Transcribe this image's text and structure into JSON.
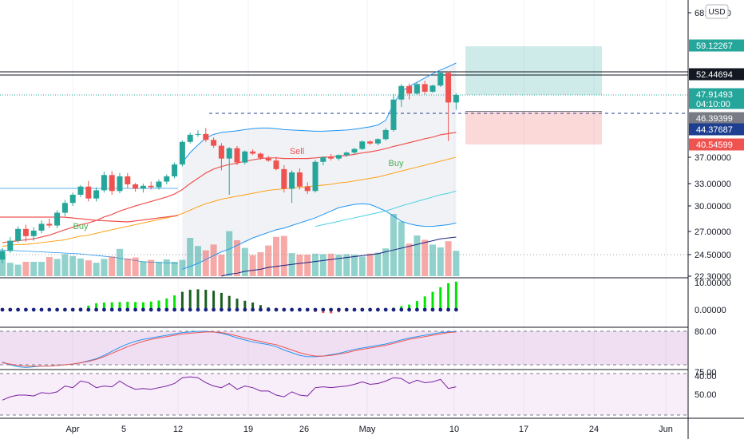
{
  "chart_data": {
    "type": "candlestick",
    "currency_button": "USD",
    "price_ticks": [
      "68.00000",
      "37.00000",
      "33.00000",
      "30.00000",
      "27.00000",
      "24.50000",
      "22.30000"
    ],
    "price_labels": [
      {
        "value": "59.12267",
        "color": "#26a69a"
      },
      {
        "value": "52.44694",
        "color": "#131722"
      },
      {
        "value": "47.91493",
        "color": "#26a69a",
        "sub": "04:10:00"
      },
      {
        "value": "46.39399",
        "color": "#787b86"
      },
      {
        "value": "44.37687",
        "color": "#1e3f8f"
      },
      {
        "value": "40.54599",
        "color": "#ef5350"
      }
    ],
    "x_ticks": [
      "Apr",
      "5",
      "12",
      "19",
      "26",
      "May",
      "10",
      "17",
      "24",
      "Jun"
    ],
    "candles": [
      [
        24.0,
        25.2,
        23.6,
        24.9
      ],
      [
        24.9,
        26.4,
        24.7,
        26.0
      ],
      [
        26.0,
        27.6,
        25.8,
        27.3
      ],
      [
        27.3,
        27.8,
        25.9,
        26.5
      ],
      [
        26.5,
        27.5,
        26.0,
        27.1
      ],
      [
        27.1,
        28.3,
        26.8,
        27.9
      ],
      [
        27.9,
        28.5,
        27.4,
        27.7
      ],
      [
        27.7,
        29.5,
        27.4,
        29.2
      ],
      [
        29.2,
        30.8,
        28.8,
        30.4
      ],
      [
        30.4,
        31.8,
        30.0,
        31.5
      ],
      [
        31.5,
        32.8,
        31.2,
        32.6
      ],
      [
        32.6,
        33.4,
        30.6,
        31.0
      ],
      [
        31.0,
        32.5,
        30.6,
        32.1
      ],
      [
        32.1,
        34.8,
        31.8,
        34.3
      ],
      [
        34.3,
        34.9,
        31.5,
        32.0
      ],
      [
        32.0,
        34.6,
        31.7,
        34.1
      ],
      [
        34.1,
        34.6,
        32.4,
        32.9
      ],
      [
        32.9,
        33.1,
        31.9,
        32.3
      ],
      [
        32.3,
        33.0,
        31.8,
        32.7
      ],
      [
        32.7,
        33.3,
        32.2,
        32.5
      ],
      [
        32.5,
        33.6,
        32.2,
        33.3
      ],
      [
        33.3,
        34.4,
        32.9,
        34.1
      ],
      [
        34.1,
        36.2,
        33.8,
        35.9
      ],
      [
        35.9,
        41.6,
        35.6,
        41.2
      ],
      [
        41.2,
        43.5,
        40.8,
        43.0
      ],
      [
        43.0,
        44.1,
        42.5,
        43.2
      ],
      [
        43.2,
        44.6,
        41.2,
        41.7
      ],
      [
        41.7,
        42.3,
        39.6,
        40.2
      ],
      [
        40.2,
        40.9,
        35.0,
        36.8
      ],
      [
        36.8,
        39.8,
        31.5,
        39.5
      ],
      [
        39.5,
        40.1,
        35.8,
        36.2
      ],
      [
        36.2,
        38.9,
        35.9,
        38.6
      ],
      [
        38.6,
        39.2,
        37.6,
        38.0
      ],
      [
        38.0,
        38.3,
        36.6,
        36.9
      ],
      [
        36.9,
        37.4,
        36.3,
        36.5
      ],
      [
        36.5,
        37.1,
        35.0,
        35.2
      ],
      [
        35.2,
        35.8,
        31.8,
        32.3
      ],
      [
        32.3,
        35.0,
        30.4,
        34.7
      ],
      [
        34.7,
        35.3,
        32.2,
        32.6
      ],
      [
        32.6,
        33.2,
        31.6,
        32.0
      ],
      [
        32.0,
        36.6,
        31.8,
        36.3
      ],
      [
        36.3,
        37.3,
        35.8,
        37.0
      ],
      [
        37.0,
        37.9,
        36.5,
        36.8
      ],
      [
        36.8,
        37.8,
        36.5,
        37.6
      ],
      [
        37.6,
        38.6,
        37.1,
        38.3
      ],
      [
        38.3,
        39.6,
        37.9,
        39.3
      ],
      [
        39.3,
        41.6,
        39.0,
        41.3
      ],
      [
        41.3,
        41.6,
        40.4,
        40.8
      ],
      [
        40.8,
        42.1,
        40.3,
        41.9
      ],
      [
        41.9,
        44.6,
        41.5,
        44.2
      ],
      [
        44.2,
        48.1,
        43.8,
        47.6
      ],
      [
        47.6,
        50.2,
        47.1,
        49.8
      ],
      [
        49.8,
        50.3,
        47.6,
        48.2
      ],
      [
        48.2,
        50.6,
        47.9,
        50.2
      ],
      [
        50.2,
        50.9,
        48.0,
        48.6
      ],
      [
        48.6,
        50.1,
        48.4,
        49.9
      ],
      [
        49.9,
        52.9,
        49.6,
        52.6
      ],
      [
        52.6,
        52.9,
        41.4,
        47.4
      ],
      [
        47.4,
        48.3,
        46.9,
        47.91
      ]
    ],
    "volumes": [
      0.43,
      0.28,
      0.24,
      0.3,
      0.3,
      0.3,
      0.4,
      0.36,
      0.46,
      0.42,
      0.37,
      0.33,
      0.28,
      0.36,
      0.41,
      0.57,
      0.37,
      0.39,
      0.31,
      0.34,
      0.3,
      0.35,
      0.3,
      0.34,
      0.8,
      0.63,
      0.54,
      0.66,
      0.45,
      0.94,
      0.75,
      0.59,
      0.44,
      0.5,
      0.64,
      0.82,
      0.84,
      0.48,
      0.45,
      0.45,
      0.47,
      0.46,
      0.47,
      0.45,
      0.46,
      0.45,
      0.41,
      0.47,
      0.49,
      0.58,
      1.3,
      1.14,
      0.68,
      0.85,
      0.76,
      0.66,
      0.6,
      0.73,
      0.53
    ],
    "ma_red": [
      25.8,
      25.9,
      26.0,
      26.1,
      26.2,
      26.4,
      26.6,
      26.9,
      27.2,
      27.5,
      27.8,
      28.0,
      28.3,
      28.7,
      29.0,
      29.4,
      29.7,
      30.0,
      30.3,
      30.6,
      30.9,
      31.2,
      31.6,
      32.2,
      33.0,
      33.8,
      34.6,
      35.2,
      35.6,
      35.9,
      36.1,
      36.4,
      36.6,
      36.8,
      36.9,
      36.9,
      36.8,
      36.8,
      36.8,
      36.8,
      36.9,
      37.0,
      37.1,
      37.3,
      37.5,
      37.8,
      38.2,
      38.5,
      38.9,
      39.4,
      40.0,
      40.5,
      41.0,
      41.5,
      42.0,
      42.4,
      43.0,
      43.3,
      43.6
    ],
    "ma_orange": [
      25.4,
      25.5,
      25.6,
      25.6,
      25.7,
      25.8,
      25.9,
      26.0,
      26.1,
      26.3,
      26.5,
      26.6,
      26.8,
      27.0,
      27.2,
      27.4,
      27.6,
      27.8,
      28.0,
      28.2,
      28.4,
      28.6,
      28.8,
      29.1,
      29.5,
      29.9,
      30.3,
      30.6,
      30.9,
      31.1,
      31.3,
      31.5,
      31.7,
      31.9,
      32.1,
      32.2,
      32.3,
      32.4,
      32.5,
      32.6,
      32.7,
      32.8,
      32.9,
      33.1,
      33.2,
      33.4,
      33.6,
      33.8,
      34.0,
      34.3,
      34.6,
      34.9,
      35.2,
      35.5,
      35.8,
      36.1,
      36.4,
      36.7,
      37.0
    ],
    "bb_upper": [
      null,
      null,
      null,
      null,
      null,
      null,
      null,
      null,
      null,
      null,
      null,
      null,
      null,
      null,
      null,
      null,
      null,
      null,
      null,
      null,
      null,
      null,
      null,
      36.2,
      38.3,
      40.4,
      42.2,
      43.1,
      43.6,
      43.8,
      44.0,
      44.3,
      44.5,
      44.6,
      44.6,
      44.5,
      44.3,
      44.2,
      44.1,
      44.0,
      43.9,
      43.9,
      44.0,
      44.1,
      44.2,
      44.4,
      44.6,
      44.8,
      45.1,
      45.9,
      47.3,
      48.6,
      49.7,
      50.6,
      51.5,
      52.4,
      53.3,
      54.1,
      55.0
    ],
    "bb_lower": [
      null,
      null,
      null,
      null,
      null,
      null,
      null,
      null,
      null,
      null,
      null,
      null,
      null,
      null,
      null,
      null,
      null,
      null,
      null,
      null,
      null,
      null,
      null,
      23.0,
      23.3,
      23.6,
      24.0,
      24.4,
      24.8,
      25.1,
      25.5,
      25.9,
      26.3,
      26.6,
      26.9,
      27.2,
      27.4,
      27.7,
      28.0,
      28.3,
      28.6,
      29.0,
      29.4,
      29.8,
      30.0,
      30.2,
      30.3,
      30.2,
      29.8,
      29.4,
      28.8,
      28.2,
      27.9,
      27.7,
      27.6,
      27.6,
      27.7,
      27.8,
      28.0
    ],
    "ma_cyan": [
      null,
      null,
      null,
      null,
      null,
      null,
      null,
      null,
      null,
      null,
      null,
      null,
      null,
      null,
      null,
      null,
      null,
      null,
      null,
      null,
      null,
      null,
      null,
      null,
      null,
      null,
      null,
      null,
      null,
      null,
      null,
      null,
      null,
      null,
      null,
      null,
      null,
      null,
      null,
      null,
      27.6,
      27.8,
      28.0,
      28.2,
      28.4,
      28.6,
      28.8,
      29.0,
      29.2,
      29.4,
      29.7,
      30.0,
      30.3,
      30.6,
      30.9,
      31.2,
      31.5,
      31.7,
      32.0
    ],
    "ma_navy": [
      null,
      null,
      null,
      null,
      null,
      null,
      null,
      null,
      null,
      null,
      null,
      null,
      null,
      null,
      null,
      null,
      null,
      null,
      null,
      null,
      null,
      null,
      null,
      null,
      null,
      null,
      null,
      null,
      22.3,
      22.5,
      22.6,
      22.8,
      22.9,
      23.0,
      23.2,
      23.3,
      23.4,
      23.5,
      23.6,
      23.7,
      23.8,
      23.9,
      24.0,
      24.1,
      24.2,
      24.3,
      24.4,
      24.5,
      24.6,
      24.8,
      25.0,
      25.2,
      25.4,
      25.6,
      25.8,
      26.0,
      26.2,
      26.3,
      26.4
    ],
    "levels": {
      "stop_line": 52.44694,
      "target": 59.12267,
      "entry": 47.91493,
      "dashed": 46.39399,
      "stop": 40.54599
    },
    "signals": [
      {
        "label": "Buy",
        "color": "#4caf50"
      },
      {
        "label": "Sell",
        "color": "#ef5350"
      },
      {
        "label": "Buy",
        "color": "#4caf50"
      }
    ],
    "histogram": [
      -0.4,
      -0.6,
      -0.5,
      -0.4,
      -0.3,
      -0.2,
      -0.1,
      0.1,
      0.2,
      0.4,
      0.8,
      1.6,
      2.5,
      2.8,
      2.9,
      3.0,
      3.1,
      3.0,
      2.9,
      3.2,
      3.6,
      4.4,
      5.6,
      7.0,
      7.8,
      8.0,
      7.8,
      7.4,
      6.6,
      5.4,
      4.3,
      3.5,
      2.8,
      1.8,
      0.9,
      0.2,
      -0.3,
      -0.4,
      -0.5,
      -0.4,
      -0.9,
      -1.3,
      -1.4,
      -1.0,
      -0.6,
      -0.4,
      -0.3,
      -0.2,
      -0.1,
      0.2,
      0.8,
      1.4,
      2.0,
      3.4,
      5.2,
      7.0,
      8.8,
      10.4,
      11.0
    ],
    "macd_ticks": [
      "10.00000",
      "0.00000"
    ],
    "stoch_ticks": [
      "80.00",
      "40.00"
    ],
    "stoch_k": [
      34,
      30,
      27,
      26,
      27,
      28,
      28,
      29,
      30,
      31,
      33,
      36,
      39,
      44,
      50,
      56,
      61,
      65,
      68,
      70,
      72,
      74,
      76,
      78,
      79,
      80,
      80,
      79,
      77,
      74,
      70,
      67,
      64,
      62,
      60,
      57,
      52,
      48,
      44,
      42,
      42,
      43,
      45,
      47,
      50,
      53,
      55,
      57,
      59,
      61,
      64,
      67,
      70,
      72,
      74,
      76,
      78,
      79,
      80
    ],
    "stoch_d": [
      33,
      31,
      29,
      28,
      28,
      28,
      28,
      29,
      30,
      31,
      33,
      35,
      38,
      42,
      47,
      52,
      57,
      61,
      65,
      68,
      70,
      72,
      74,
      76,
      77,
      78,
      79,
      79,
      78,
      76,
      73,
      70,
      67,
      65,
      62,
      60,
      56,
      52,
      48,
      45,
      43,
      43,
      44,
      46,
      48,
      51,
      53,
      55,
      57,
      59,
      62,
      65,
      68,
      70,
      72,
      74,
      76,
      78,
      79
    ],
    "rsi_ticks": [
      "75.00",
      "50.00"
    ],
    "rsi": [
      43,
      47,
      49,
      49,
      48,
      52,
      51,
      53,
      60,
      58,
      66,
      64,
      58,
      60,
      59,
      66,
      60,
      56,
      57,
      56,
      58,
      60,
      63,
      70,
      71,
      70,
      64,
      60,
      58,
      63,
      56,
      60,
      58,
      54,
      54,
      49,
      47,
      53,
      49,
      48,
      58,
      59,
      58,
      59,
      60,
      62,
      65,
      62,
      63,
      66,
      70,
      69,
      63,
      67,
      64,
      65,
      68,
      57,
      59
    ]
  }
}
